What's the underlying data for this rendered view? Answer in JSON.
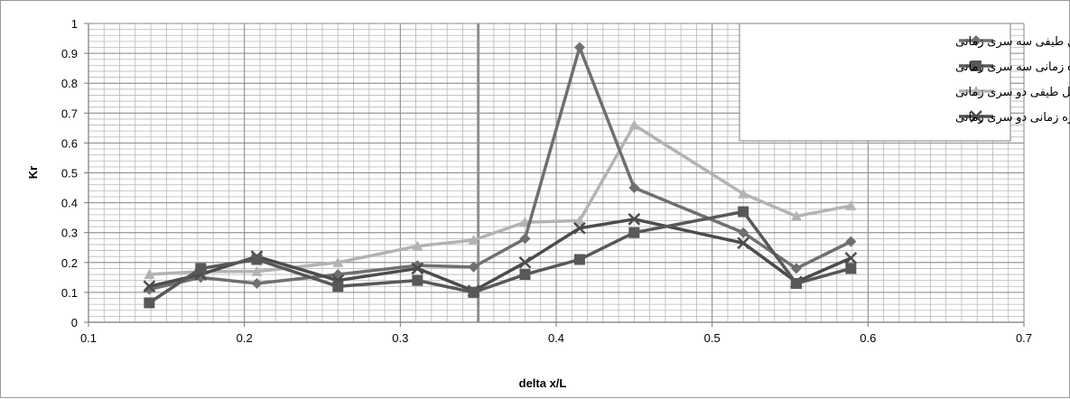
{
  "chart_data": {
    "type": "line",
    "xlabel": "delta x/L",
    "ylabel": "Kr",
    "xlim": [
      0.1,
      0.7
    ],
    "ylim": [
      0,
      1
    ],
    "x_ticks": [
      "0.1",
      "0.2",
      "0.3",
      "0.4",
      "0.5",
      "0.6",
      "0.7"
    ],
    "y_ticks": [
      "0",
      "0.1",
      "0.2",
      "0.3",
      "0.4",
      "0.5",
      "0.6",
      "0.7",
      "0.8",
      "0.9",
      "1"
    ],
    "grid": true,
    "legend_position": "top-right",
    "reference_line_x": 0.35,
    "series": [
      {
        "name": "تحلیل طیفی سه سری زمانی",
        "marker": "diamond",
        "color": "#6f6f6f",
        "x": [
          0.139,
          0.172,
          0.208,
          0.26,
          0.311,
          0.347,
          0.38,
          0.415,
          0.45,
          0.52,
          0.554,
          0.589
        ],
        "y": [
          0.11,
          0.15,
          0.13,
          0.16,
          0.19,
          0.185,
          0.28,
          0.92,
          0.45,
          0.3,
          0.18,
          0.27
        ]
      },
      {
        "name": "تحلیل در حوزه زمانی سه سری زمانی",
        "marker": "square",
        "color": "#585858",
        "x": [
          0.139,
          0.172,
          0.208,
          0.26,
          0.311,
          0.347,
          0.38,
          0.415,
          0.45,
          0.52,
          0.554,
          0.589
        ],
        "y": [
          0.065,
          0.18,
          0.21,
          0.12,
          0.14,
          0.1,
          0.16,
          0.21,
          0.3,
          0.37,
          0.13,
          0.18
        ]
      },
      {
        "name": "تحلیل طیفی دو سری زمانی",
        "marker": "triangle",
        "color": "#b3b3b3",
        "x": [
          0.139,
          0.172,
          0.208,
          0.26,
          0.311,
          0.347,
          0.38,
          0.415,
          0.45,
          0.52,
          0.554,
          0.589
        ],
        "y": [
          0.16,
          0.17,
          0.17,
          0.2,
          0.255,
          0.275,
          0.335,
          0.34,
          0.66,
          0.43,
          0.355,
          0.39
        ]
      },
      {
        "name": "تحلیل در حوزه زمانی دو سری زمانی",
        "marker": "x",
        "color": "#4c4c4c",
        "x": [
          0.139,
          0.172,
          0.208,
          0.26,
          0.311,
          0.347,
          0.38,
          0.415,
          0.45,
          0.52,
          0.554,
          0.589
        ],
        "y": [
          0.12,
          0.16,
          0.22,
          0.14,
          0.18,
          0.105,
          0.2,
          0.315,
          0.345,
          0.265,
          0.135,
          0.215
        ]
      }
    ]
  }
}
